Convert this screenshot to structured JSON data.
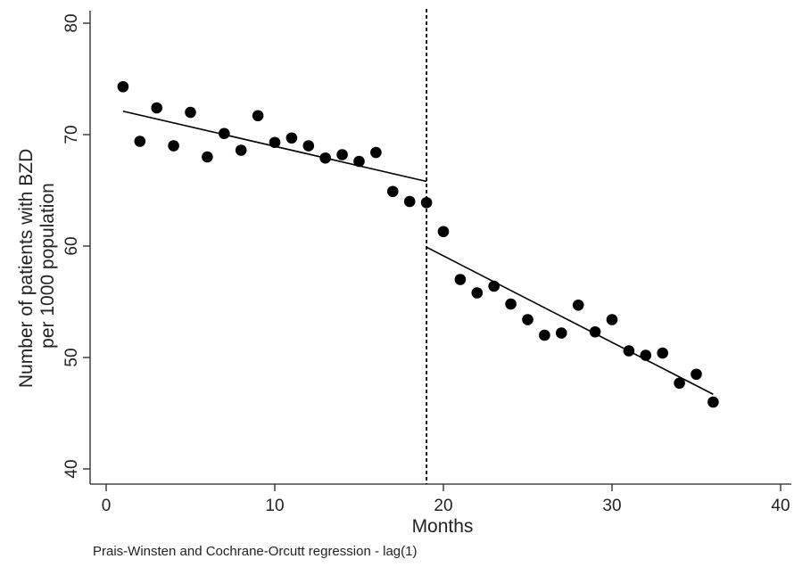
{
  "chart_data": {
    "type": "scatter",
    "xlabel": "Months",
    "ylabel": [
      "Number of patients with BZD",
      "per 1000 population"
    ],
    "note": "Prais-Winsten and Cochrane-Orcutt regression - lag(1)",
    "xlim": [
      0,
      40
    ],
    "ylim": [
      40,
      80
    ],
    "x_ticks": [
      0,
      10,
      20,
      30,
      40
    ],
    "y_ticks": [
      40,
      50,
      60,
      70,
      80
    ],
    "grid": false,
    "legend": "none",
    "intervention_month": 19,
    "points": [
      {
        "x": 1,
        "y": 74.3
      },
      {
        "x": 2,
        "y": 69.4
      },
      {
        "x": 3,
        "y": 72.4
      },
      {
        "x": 4,
        "y": 69.0
      },
      {
        "x": 5,
        "y": 72.0
      },
      {
        "x": 6,
        "y": 68.0
      },
      {
        "x": 7,
        "y": 70.1
      },
      {
        "x": 8,
        "y": 68.6
      },
      {
        "x": 9,
        "y": 71.7
      },
      {
        "x": 10,
        "y": 69.3
      },
      {
        "x": 11,
        "y": 69.7
      },
      {
        "x": 12,
        "y": 69.0
      },
      {
        "x": 13,
        "y": 67.9
      },
      {
        "x": 14,
        "y": 68.2
      },
      {
        "x": 15,
        "y": 67.6
      },
      {
        "x": 16,
        "y": 68.4
      },
      {
        "x": 17,
        "y": 64.9
      },
      {
        "x": 18,
        "y": 64.0
      },
      {
        "x": 19,
        "y": 63.9
      },
      {
        "x": 20,
        "y": 61.3
      },
      {
        "x": 21,
        "y": 57.0
      },
      {
        "x": 22,
        "y": 55.8
      },
      {
        "x": 23,
        "y": 56.4
      },
      {
        "x": 24,
        "y": 54.8
      },
      {
        "x": 25,
        "y": 53.4
      },
      {
        "x": 26,
        "y": 52.0
      },
      {
        "x": 27,
        "y": 52.2
      },
      {
        "x": 28,
        "y": 54.7
      },
      {
        "x": 29,
        "y": 52.3
      },
      {
        "x": 30,
        "y": 53.4
      },
      {
        "x": 31,
        "y": 50.6
      },
      {
        "x": 32,
        "y": 50.2
      },
      {
        "x": 33,
        "y": 50.4
      },
      {
        "x": 34,
        "y": 47.7
      },
      {
        "x": 35,
        "y": 48.5
      },
      {
        "x": 36,
        "y": 46.0
      }
    ],
    "fit_segments": [
      {
        "x": [
          1,
          19
        ],
        "y": [
          72.1,
          65.8
        ]
      },
      {
        "x": [
          19,
          36
        ],
        "y": [
          59.9,
          46.7
        ]
      }
    ],
    "colors": {
      "points": "#000000",
      "lines": "#000000",
      "axis": "#222222"
    }
  }
}
